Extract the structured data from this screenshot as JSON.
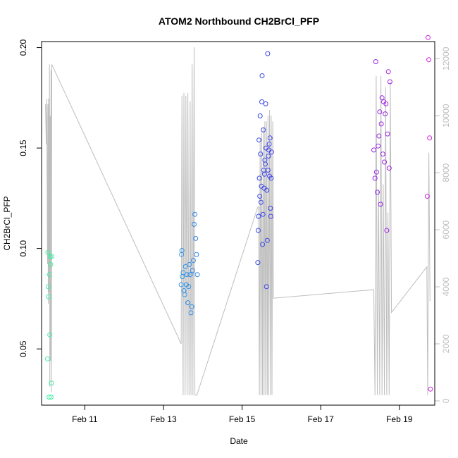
{
  "chart_data": {
    "type": "scatter",
    "title": "ATOM2 Northbound CH2BrCl_PFP",
    "xlabel": "Date",
    "ylabel": "CH2BrCl_PFP",
    "x_unit": "day of February",
    "xlim": [
      9.9,
      19.9
    ],
    "ylim": [
      0.022,
      0.203
    ],
    "y2lim": [
      -150,
      12600
    ],
    "x_ticks": [
      11,
      13,
      15,
      17,
      19
    ],
    "x_tick_labels": [
      "Feb 11",
      "Feb 13",
      "Feb 15",
      "Feb 17",
      "Feb 19"
    ],
    "y_ticks": [
      0.05,
      0.1,
      0.15,
      0.2
    ],
    "y_tick_labels": [
      "0.05",
      "0.10",
      "0.15",
      "0.20"
    ],
    "y2_ticks": [
      0,
      2000,
      4000,
      6000,
      8000,
      10000,
      12000
    ],
    "y2_tick_labels": [
      "0",
      "2000",
      "4000",
      "6000",
      "8000",
      "10000",
      "12000"
    ],
    "grid": false,
    "legend": "none",
    "colors": {
      "axis": "#000000",
      "altitude_line": "#bebebe",
      "point_gradient": [
        "#40f0a0",
        "#30c8e8",
        "#2a50e8",
        "#6a2ae8",
        "#d020e0"
      ]
    },
    "points": {
      "x": [
        10.05,
        10.06,
        10.07,
        10.08,
        10.09,
        10.1,
        10.11,
        10.12,
        10.13,
        10.14,
        10.15,
        10.16,
        13.45,
        13.46,
        13.47,
        13.48,
        13.5,
        13.52,
        13.54,
        13.56,
        13.58,
        13.6,
        13.62,
        13.64,
        13.66,
        13.68,
        13.7,
        13.72,
        13.74,
        13.76,
        13.78,
        13.8,
        13.82,
        13.84,
        13.86,
        15.4,
        15.41,
        15.42,
        15.43,
        15.44,
        15.45,
        15.46,
        15.47,
        15.48,
        15.49,
        15.5,
        15.51,
        15.52,
        15.53,
        15.54,
        15.55,
        15.56,
        15.57,
        15.58,
        15.59,
        15.6,
        15.61,
        15.62,
        15.63,
        15.64,
        15.65,
        15.66,
        15.67,
        15.68,
        15.69,
        15.7,
        15.71,
        15.72,
        15.73,
        15.74,
        15.75,
        18.35,
        18.38,
        18.4,
        18.42,
        18.44,
        18.46,
        18.48,
        18.5,
        18.52,
        18.54,
        18.56,
        18.58,
        18.6,
        18.62,
        18.64,
        18.66,
        18.68,
        18.7,
        18.72,
        18.74,
        18.76,
        19.71,
        19.73,
        19.75,
        19.77,
        19.79
      ],
      "y": [
        0.045,
        0.098,
        0.081,
        0.076,
        0.026,
        0.087,
        0.057,
        0.096,
        0.092,
        0.026,
        0.033,
        0.096,
        0.082,
        0.097,
        0.099,
        0.086,
        0.088,
        0.079,
        0.077,
        0.091,
        0.082,
        0.087,
        0.073,
        0.081,
        0.092,
        0.087,
        0.068,
        0.071,
        0.089,
        0.094,
        0.112,
        0.117,
        0.105,
        0.097,
        0.087,
        0.093,
        0.109,
        0.116,
        0.154,
        0.135,
        0.126,
        0.166,
        0.147,
        0.123,
        0.131,
        0.173,
        0.186,
        0.102,
        0.117,
        0.159,
        0.139,
        0.13,
        0.137,
        0.144,
        0.142,
        0.172,
        0.15,
        0.081,
        0.129,
        0.104,
        0.197,
        0.139,
        0.146,
        0.149,
        0.152,
        0.136,
        0.155,
        0.12,
        0.116,
        0.135,
        0.148,
        0.149,
        0.135,
        0.193,
        0.138,
        0.128,
        0.151,
        0.156,
        0.168,
        0.122,
        0.162,
        0.175,
        0.147,
        0.173,
        0.143,
        0.167,
        0.172,
        0.109,
        0.157,
        0.188,
        0.14,
        0.183,
        0.126,
        0.205,
        0.194,
        0.155,
        0.03
      ]
    },
    "altitude": {
      "x": [
        10.0,
        10.02,
        10.03,
        10.05,
        10.06,
        10.07,
        10.08,
        10.09,
        10.1,
        10.11,
        10.12,
        10.13,
        10.14,
        10.15,
        10.16,
        13.45,
        13.47,
        13.5,
        13.52,
        13.55,
        13.57,
        13.6,
        13.62,
        13.65,
        13.68,
        13.7,
        13.73,
        13.75,
        13.78,
        13.8,
        13.85,
        15.4,
        15.42,
        15.44,
        15.46,
        15.48,
        15.5,
        15.52,
        15.54,
        15.56,
        15.58,
        15.6,
        15.62,
        15.64,
        15.66,
        15.68,
        15.7,
        15.72,
        15.74,
        15.76,
        15.78,
        15.8,
        18.35,
        18.38,
        18.41,
        18.44,
        18.47,
        18.5,
        18.53,
        18.56,
        18.59,
        18.62,
        18.65,
        18.68,
        18.71,
        18.74,
        18.77,
        18.8,
        19.7,
        19.72,
        19.75,
        19.78
      ],
      "y": [
        10400,
        9000,
        10600,
        4800,
        10400,
        3400,
        10600,
        3800,
        11800,
        500,
        10000,
        1400,
        11600,
        300,
        11800,
        2000,
        10700,
        200,
        10800,
        200,
        10700,
        200,
        10800,
        200,
        10500,
        200,
        11800,
        200,
        12400,
        200,
        200,
        6800,
        6800,
        200,
        9200,
        200,
        9400,
        200,
        9600,
        200,
        9800,
        200,
        9800,
        200,
        10000,
        200,
        10200,
        200,
        10000,
        200,
        9800,
        3600,
        3900,
        200,
        11400,
        200,
        7400,
        200,
        11400,
        200,
        7600,
        200,
        11000,
        200,
        6600,
        200,
        11200,
        3100,
        4700,
        200,
        8700,
        3500
      ]
    }
  }
}
